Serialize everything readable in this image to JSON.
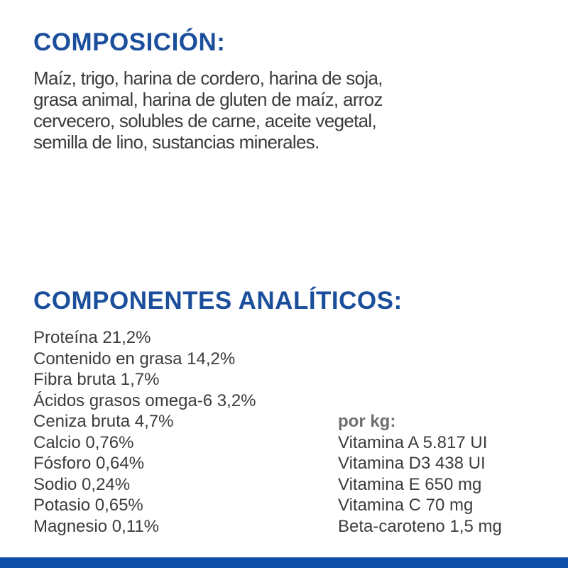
{
  "composicion": {
    "title": "COMPOSICIÓN:",
    "lines": [
      "Maíz, trigo, harina de cordero, harina de soja,",
      "grasa animal, harina de gluten de maíz, arroz",
      "cervecero, solubles de carne, aceite vegetal,",
      "semilla de lino, sustancias minerales."
    ]
  },
  "analiticos": {
    "title": "COMPONENTES ANALÍTICOS:",
    "items": [
      "Proteína 21,2%",
      "Contenido en grasa 14,2%",
      "Fibra bruta 1,7%",
      "Ácidos grasos omega-6 3,2%",
      "Ceniza bruta 4,7%",
      "Calcio 0,76%",
      "Fósforo 0,64%",
      "Sodio 0,24%",
      "Potasio 0,65%",
      "Magnesio 0,11%"
    ],
    "per_kg_label": "por kg:",
    "vitamins": [
      "Vitamina A 5.817 UI",
      "Vitamina D3 438 UI",
      "Vitamina E 650 mg",
      "Vitamina C 70 mg",
      "Beta-caroteno 1,5 mg"
    ]
  },
  "colors": {
    "heading": "#1b4f9c",
    "text": "#3c3c3c",
    "bottom_bar": "#0e4ea8"
  }
}
